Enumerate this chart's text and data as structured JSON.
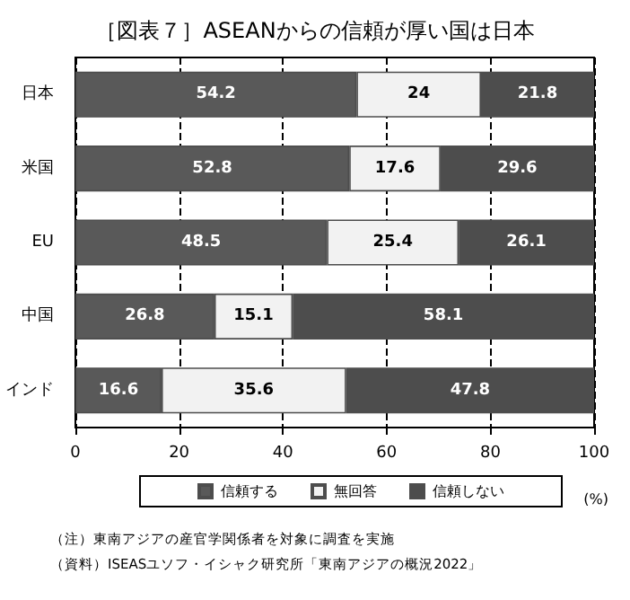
{
  "chart_data": {
    "type": "bar",
    "orientation": "horizontal",
    "stacked": true,
    "title": "［図表７］ASEANからの信頼が厚い国は日本",
    "xlabel": "(%)",
    "categories": [
      "日本",
      "米国",
      "EU",
      "中国",
      "インド"
    ],
    "series": [
      {
        "name": "信頼する",
        "color": "#595959",
        "values": [
          54.2,
          52.8,
          48.5,
          26.8,
          16.6
        ]
      },
      {
        "name": "無回答",
        "color": "#f2f2f2",
        "values": [
          24,
          17.6,
          25.4,
          15.1,
          35.6
        ]
      },
      {
        "name": "信頼しない",
        "color": "#4d4d4d",
        "values": [
          21.8,
          29.6,
          26.1,
          58.1,
          47.8
        ]
      }
    ],
    "xlim": [
      0,
      100
    ],
    "xticks": [
      0,
      20,
      40,
      60,
      80,
      100
    ],
    "grid": "x",
    "legend": "bottom",
    "data_labels": true,
    "annotations": [
      "（注）東南アジアの産官学関係者を対象に調査を実施",
      "（資料）ISEASユソフ・イシャク研究所「東南アジアの概況2022」"
    ]
  }
}
